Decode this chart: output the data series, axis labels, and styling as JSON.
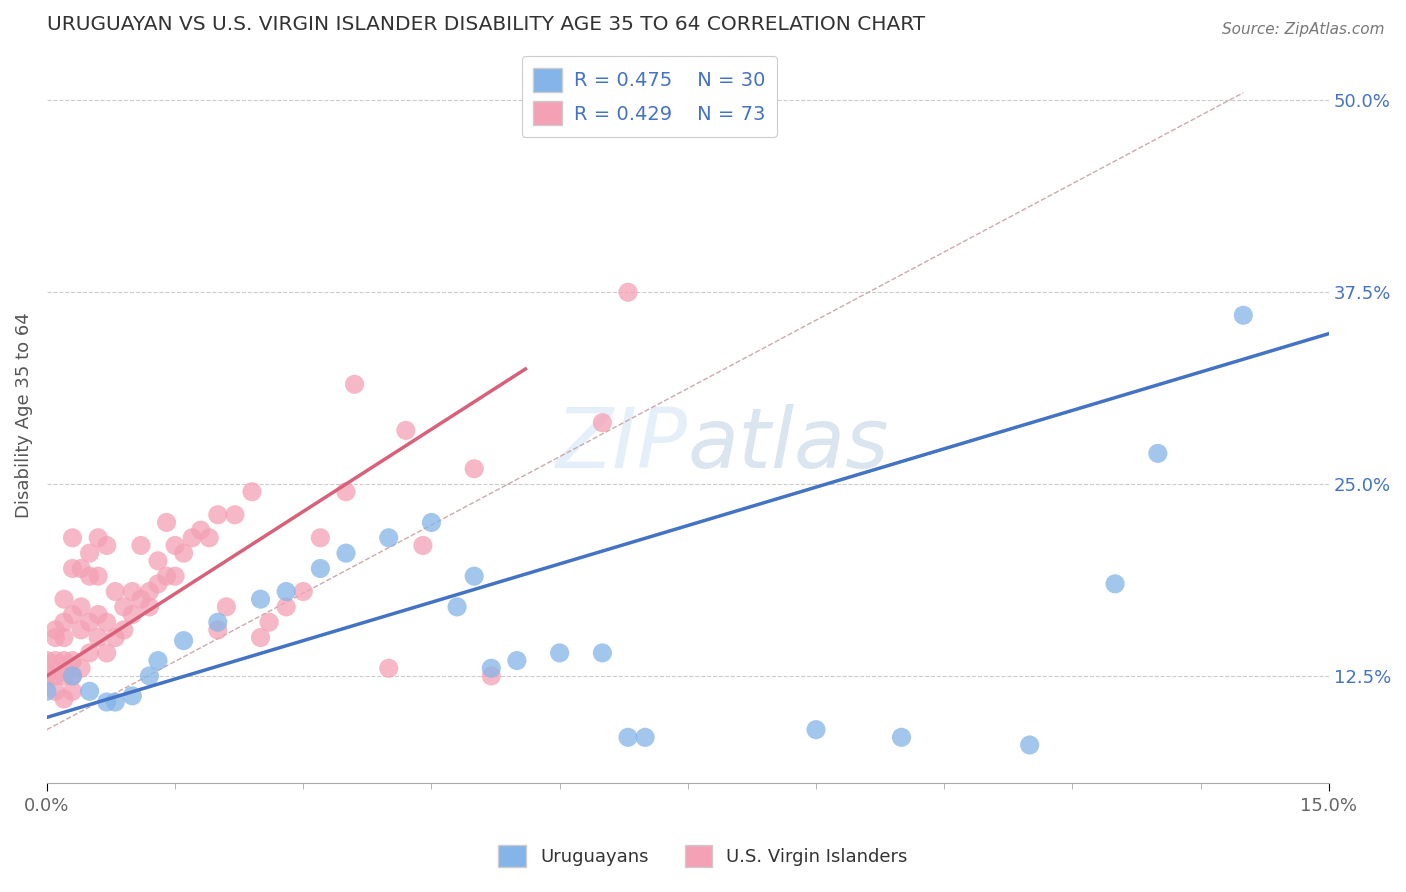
{
  "title": "URUGUAYAN VS U.S. VIRGIN ISLANDER DISABILITY AGE 35 TO 64 CORRELATION CHART",
  "source": "Source: ZipAtlas.com",
  "xlim": [
    0.0,
    0.15
  ],
  "ylim": [
    0.055,
    0.535
  ],
  "ylabel": "Disability Age 35 to 64",
  "legend_r1": "R = 0.475",
  "legend_n1": "N = 30",
  "legend_r2": "R = 0.429",
  "legend_n2": "N = 73",
  "uruguayan_color": "#85b4e8",
  "virgin_islander_color": "#f4a0b5",
  "uruguayan_line_color": "#4472c4",
  "virgin_islander_line_color": "#d9607a",
  "ref_line_color": "#c8c8c8",
  "uruguayan_scatter": [
    [
      0.0,
      0.115
    ],
    [
      0.003,
      0.125
    ],
    [
      0.005,
      0.115
    ],
    [
      0.007,
      0.108
    ],
    [
      0.008,
      0.108
    ],
    [
      0.01,
      0.112
    ],
    [
      0.012,
      0.125
    ],
    [
      0.013,
      0.135
    ],
    [
      0.016,
      0.148
    ],
    [
      0.02,
      0.16
    ],
    [
      0.025,
      0.175
    ],
    [
      0.028,
      0.18
    ],
    [
      0.032,
      0.195
    ],
    [
      0.035,
      0.205
    ],
    [
      0.04,
      0.215
    ],
    [
      0.045,
      0.225
    ],
    [
      0.048,
      0.17
    ],
    [
      0.05,
      0.19
    ],
    [
      0.052,
      0.13
    ],
    [
      0.055,
      0.135
    ],
    [
      0.06,
      0.14
    ],
    [
      0.065,
      0.14
    ],
    [
      0.068,
      0.085
    ],
    [
      0.07,
      0.085
    ],
    [
      0.09,
      0.09
    ],
    [
      0.1,
      0.085
    ],
    [
      0.115,
      0.08
    ],
    [
      0.125,
      0.185
    ],
    [
      0.13,
      0.27
    ],
    [
      0.14,
      0.36
    ]
  ],
  "virgin_islander_scatter": [
    [
      0.0,
      0.125
    ],
    [
      0.0,
      0.135
    ],
    [
      0.001,
      0.115
    ],
    [
      0.001,
      0.125
    ],
    [
      0.001,
      0.135
    ],
    [
      0.001,
      0.15
    ],
    [
      0.001,
      0.155
    ],
    [
      0.002,
      0.11
    ],
    [
      0.002,
      0.125
    ],
    [
      0.002,
      0.135
    ],
    [
      0.002,
      0.15
    ],
    [
      0.002,
      0.16
    ],
    [
      0.002,
      0.175
    ],
    [
      0.003,
      0.115
    ],
    [
      0.003,
      0.125
    ],
    [
      0.003,
      0.135
    ],
    [
      0.003,
      0.165
    ],
    [
      0.003,
      0.195
    ],
    [
      0.003,
      0.215
    ],
    [
      0.004,
      0.13
    ],
    [
      0.004,
      0.155
    ],
    [
      0.004,
      0.17
    ],
    [
      0.004,
      0.195
    ],
    [
      0.005,
      0.14
    ],
    [
      0.005,
      0.16
    ],
    [
      0.005,
      0.19
    ],
    [
      0.005,
      0.205
    ],
    [
      0.006,
      0.15
    ],
    [
      0.006,
      0.165
    ],
    [
      0.006,
      0.19
    ],
    [
      0.006,
      0.215
    ],
    [
      0.007,
      0.14
    ],
    [
      0.007,
      0.16
    ],
    [
      0.007,
      0.21
    ],
    [
      0.008,
      0.15
    ],
    [
      0.008,
      0.18
    ],
    [
      0.009,
      0.155
    ],
    [
      0.009,
      0.17
    ],
    [
      0.01,
      0.165
    ],
    [
      0.01,
      0.18
    ],
    [
      0.011,
      0.175
    ],
    [
      0.011,
      0.21
    ],
    [
      0.012,
      0.17
    ],
    [
      0.012,
      0.18
    ],
    [
      0.013,
      0.185
    ],
    [
      0.013,
      0.2
    ],
    [
      0.014,
      0.19
    ],
    [
      0.014,
      0.225
    ],
    [
      0.015,
      0.19
    ],
    [
      0.015,
      0.21
    ],
    [
      0.016,
      0.205
    ],
    [
      0.017,
      0.215
    ],
    [
      0.018,
      0.22
    ],
    [
      0.019,
      0.215
    ],
    [
      0.02,
      0.155
    ],
    [
      0.02,
      0.23
    ],
    [
      0.021,
      0.17
    ],
    [
      0.022,
      0.23
    ],
    [
      0.024,
      0.245
    ],
    [
      0.025,
      0.15
    ],
    [
      0.026,
      0.16
    ],
    [
      0.028,
      0.17
    ],
    [
      0.03,
      0.18
    ],
    [
      0.032,
      0.215
    ],
    [
      0.035,
      0.245
    ],
    [
      0.036,
      0.315
    ],
    [
      0.04,
      0.13
    ],
    [
      0.042,
      0.285
    ],
    [
      0.044,
      0.21
    ],
    [
      0.05,
      0.26
    ],
    [
      0.052,
      0.125
    ],
    [
      0.065,
      0.29
    ],
    [
      0.068,
      0.375
    ]
  ],
  "uruguayan_line": {
    "x0": 0.0,
    "y0": 0.098,
    "x1": 0.15,
    "y1": 0.348
  },
  "virgin_islander_line": {
    "x0": 0.0,
    "y0": 0.125,
    "x1": 0.056,
    "y1": 0.325
  },
  "ref_line": {
    "x0": 0.0,
    "y0": 0.09,
    "x1": 0.14,
    "y1": 0.505
  },
  "ytick_vals": [
    0.125,
    0.25,
    0.375,
    0.5
  ],
  "ytick_labels": [
    "12.5%",
    "25.0%",
    "37.5%",
    "50.0%"
  ],
  "xtick_vals": [
    0.0,
    0.15
  ],
  "xtick_labels": [
    "0.0%",
    "15.0%"
  ],
  "minor_xticks": [
    0.015,
    0.03,
    0.045,
    0.06,
    0.075,
    0.09,
    0.105,
    0.12,
    0.135
  ]
}
